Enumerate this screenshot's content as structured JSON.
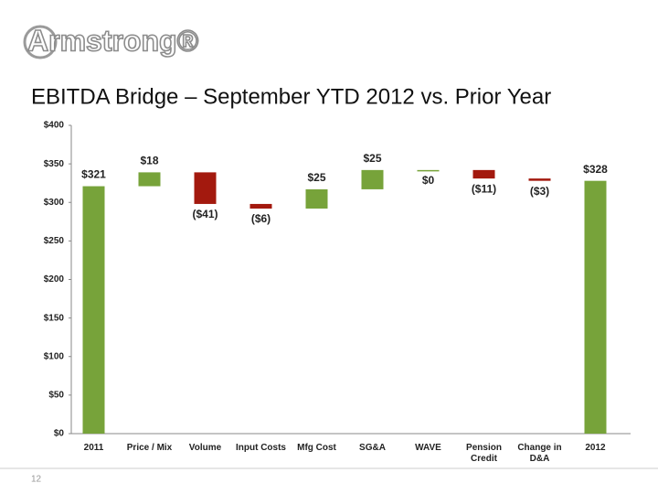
{
  "logo": "Armstrong®",
  "page_number": "12",
  "chart_data": {
    "type": "waterfall",
    "title": "EBITDA Bridge – September YTD 2012 vs. Prior Year",
    "categories": [
      "2011",
      "Price / Mix",
      "Volume",
      "Input Costs",
      "Mfg Cost",
      "SG&A",
      "WAVE",
      "Pension Credit",
      "Change in D&A",
      "2012"
    ],
    "values": [
      321,
      18,
      -41,
      -6,
      25,
      25,
      0,
      -11,
      -3,
      328
    ],
    "value_labels": [
      "$321",
      "$18",
      "($41)",
      "($6)",
      "$25",
      "$25",
      "$0",
      "($11)",
      "($3)",
      "$328"
    ],
    "is_total": [
      true,
      false,
      false,
      false,
      false,
      false,
      false,
      false,
      false,
      true
    ],
    "increase_color": "#77a33a",
    "decrease_color": "#a3190e",
    "total_color": "#77a33a",
    "ylim": [
      0,
      400
    ],
    "yticks": [
      {
        "value": 0,
        "label": "$0"
      },
      {
        "value": 50,
        "label": "$50"
      },
      {
        "value": 100,
        "label": "$100"
      },
      {
        "value": 150,
        "label": "$150"
      },
      {
        "value": 200,
        "label": "$200"
      },
      {
        "value": 250,
        "label": "$250"
      },
      {
        "value": 300,
        "label": "$300"
      },
      {
        "value": 350,
        "label": "$350"
      },
      {
        "value": 400,
        "label": "$400"
      }
    ],
    "grid": false
  }
}
